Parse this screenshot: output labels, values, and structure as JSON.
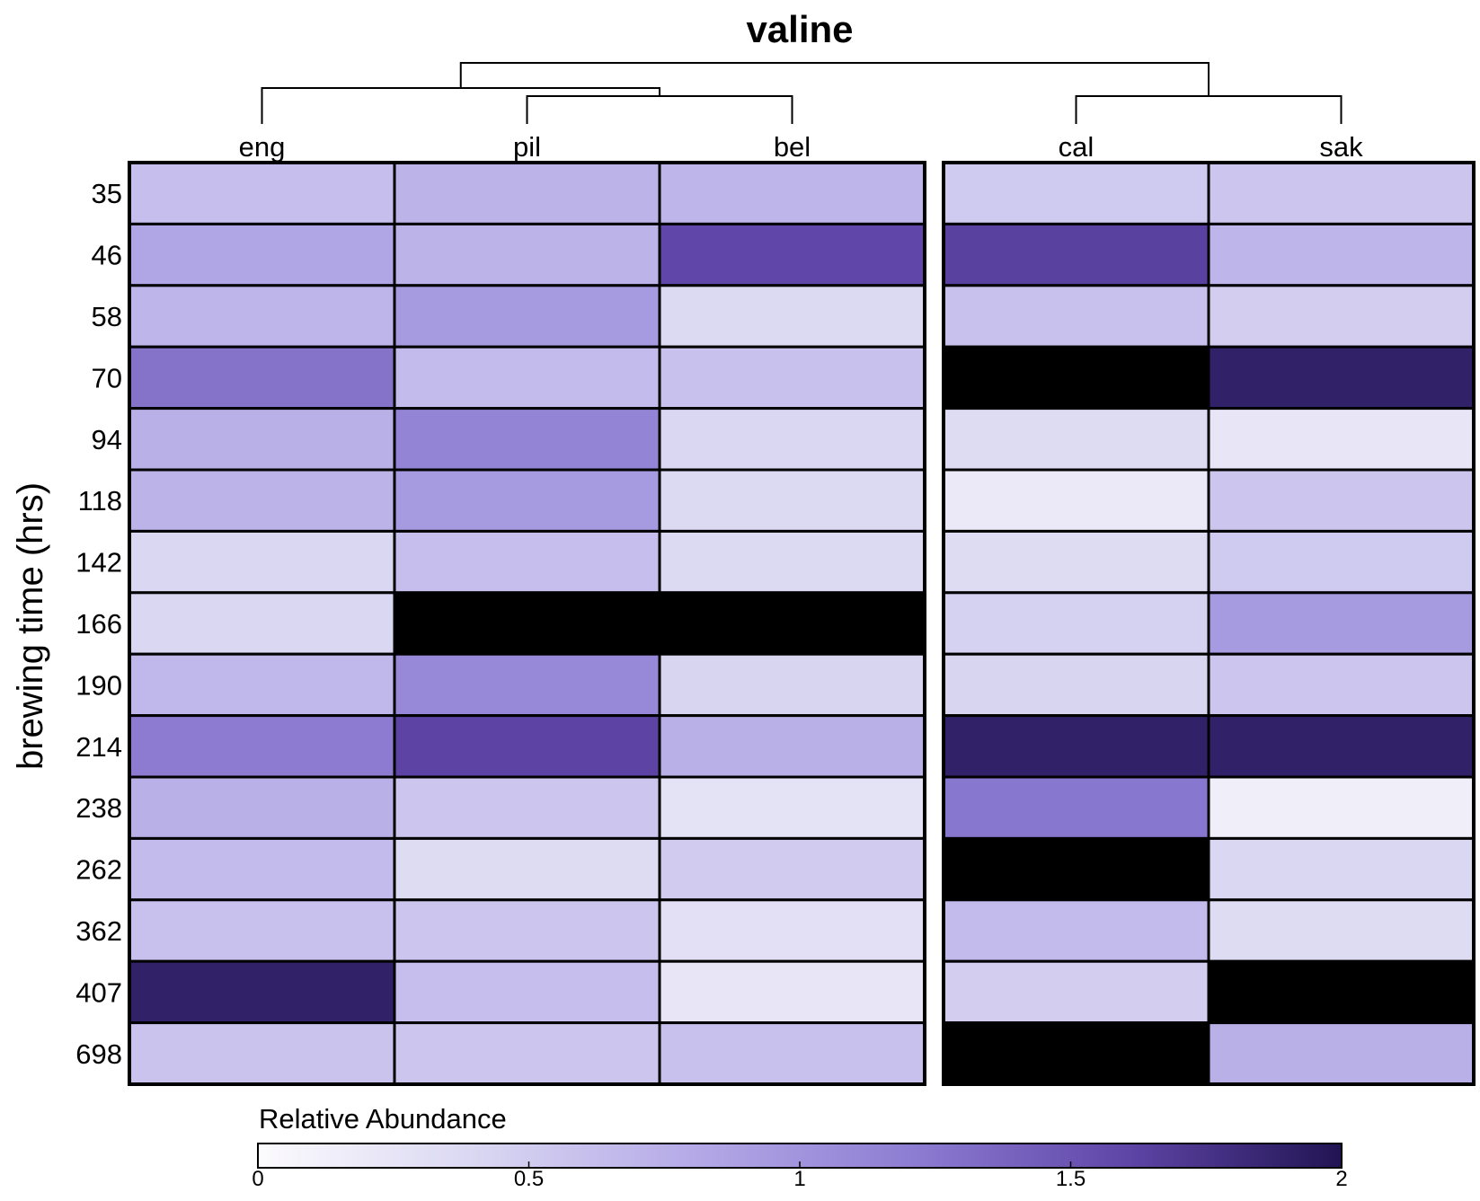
{
  "chart_data": {
    "type": "heatmap",
    "title": "valine",
    "ylabel": "brewing time (hrs)",
    "xlabel": "",
    "columns": [
      "eng",
      "pil",
      "bel",
      "cal",
      "sak"
    ],
    "column_groups": [
      [
        "eng",
        "pil",
        "bel"
      ],
      [
        "cal",
        "sak"
      ]
    ],
    "dendrogram": {
      "root": [
        [
          "eng",
          [
            "pil",
            "bel"
          ]
        ],
        [
          "cal",
          "sak"
        ]
      ]
    },
    "rows": [
      "35",
      "46",
      "58",
      "70",
      "94",
      "118",
      "142",
      "166",
      "190",
      "214",
      "238",
      "262",
      "362",
      "407",
      "698"
    ],
    "values": [
      [
        0.62,
        0.72,
        0.7,
        0.52,
        0.55
      ],
      [
        0.84,
        0.72,
        1.6,
        1.64,
        0.7
      ],
      [
        0.7,
        0.95,
        0.38,
        0.6,
        0.48
      ],
      [
        1.28,
        0.65,
        0.6,
        2.2,
        1.9
      ],
      [
        0.75,
        1.15,
        0.4,
        0.35,
        0.25
      ],
      [
        0.72,
        0.95,
        0.38,
        0.2,
        0.55
      ],
      [
        0.4,
        0.62,
        0.38,
        0.35,
        0.52
      ],
      [
        0.4,
        2.2,
        2.2,
        0.45,
        0.95
      ],
      [
        0.68,
        1.1,
        0.42,
        0.42,
        0.55
      ],
      [
        1.22,
        1.62,
        0.75,
        1.9,
        1.9
      ],
      [
        0.75,
        0.55,
        0.28,
        1.25,
        0.15
      ],
      [
        0.65,
        0.35,
        0.5,
        2.2,
        0.4
      ],
      [
        0.6,
        0.55,
        0.3,
        0.65,
        0.35
      ],
      [
        1.9,
        0.62,
        0.25,
        0.48,
        2.2
      ],
      [
        0.58,
        0.55,
        0.6,
        2.2,
        0.75
      ]
    ],
    "legend": {
      "title": "Relative Abundance",
      "min": 0,
      "max": 2,
      "ticks": [
        0,
        0.5,
        1,
        1.5,
        2
      ],
      "tick_labels": [
        "0",
        "0.5",
        "1",
        "1.5",
        "2"
      ],
      "colors": [
        "#fcfbfd",
        "#dad7f2",
        "#b5aae7",
        "#8e7ed3",
        "#5f46a8",
        "#211453"
      ],
      "over_color": "#000000"
    }
  }
}
